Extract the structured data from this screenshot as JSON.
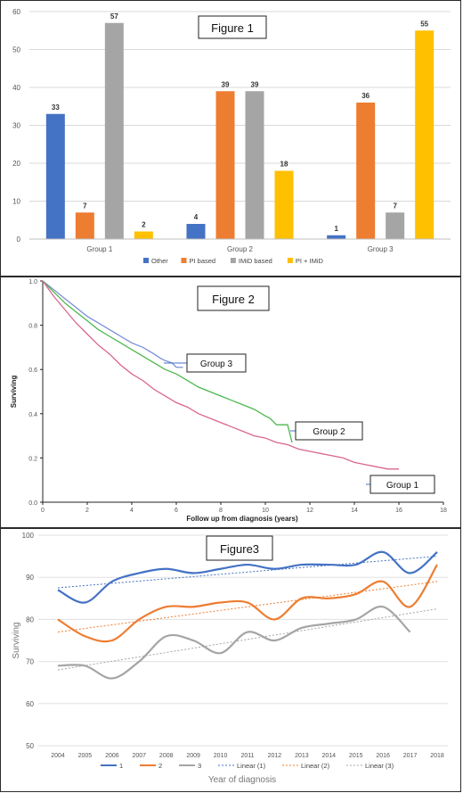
{
  "chart_data": [
    {
      "type": "bar",
      "title": "Figure 1",
      "categories": [
        "Group 1",
        "Group 2",
        "Group 3"
      ],
      "series": [
        {
          "name": "Other",
          "color": "#4472c4",
          "values": [
            33,
            4,
            1
          ]
        },
        {
          "name": "PI based",
          "color": "#ed7d31",
          "values": [
            7,
            39,
            36
          ]
        },
        {
          "name": "IMiD based",
          "color": "#a5a5a5",
          "values": [
            57,
            39,
            7
          ]
        },
        {
          "name": "PI + IMiD",
          "color": "#ffc000",
          "values": [
            2,
            18,
            55
          ]
        }
      ],
      "ylim": [
        0,
        60
      ],
      "yticks": [
        0,
        10,
        20,
        30,
        40,
        50,
        60
      ],
      "grid": true,
      "legend_position": "bottom"
    },
    {
      "type": "line",
      "title": "Figure 2",
      "xlabel": "Follow up from diagnosis (years)",
      "ylabel": "Surviving",
      "xlim": [
        0,
        18
      ],
      "ylim": [
        0,
        1.0
      ],
      "xticks": [
        0,
        2,
        4,
        6,
        8,
        10,
        12,
        14,
        16,
        18
      ],
      "yticks": [
        "0.0",
        "0.2",
        "0.4",
        "0.6",
        "0.8",
        "1.0"
      ],
      "series": [
        {
          "name": "Group 3",
          "color": "#7b8fd6",
          "x": [
            0,
            0.5,
            1,
            1.5,
            2,
            2.5,
            3,
            3.5,
            4,
            4.5,
            5,
            5.3,
            5.5,
            5.8,
            6.0,
            6.3
          ],
          "y": [
            1.0,
            0.96,
            0.92,
            0.88,
            0.84,
            0.81,
            0.78,
            0.75,
            0.72,
            0.7,
            0.67,
            0.65,
            0.64,
            0.63,
            0.61,
            0.61
          ]
        },
        {
          "name": "Group 2",
          "color": "#4db84d",
          "x": [
            0,
            0.5,
            1,
            1.5,
            2,
            2.5,
            3,
            3.5,
            4,
            4.5,
            5,
            5.5,
            6,
            6.5,
            7,
            7.5,
            8,
            8.5,
            9,
            9.5,
            10,
            10.2,
            10.5,
            11.0,
            11.2
          ],
          "y": [
            1.0,
            0.95,
            0.9,
            0.86,
            0.82,
            0.78,
            0.75,
            0.72,
            0.69,
            0.66,
            0.63,
            0.6,
            0.58,
            0.55,
            0.52,
            0.5,
            0.48,
            0.46,
            0.44,
            0.42,
            0.39,
            0.38,
            0.35,
            0.35,
            0.27
          ]
        },
        {
          "name": "Group 1",
          "color": "#d9668f",
          "x": [
            0,
            0.5,
            1,
            1.5,
            2,
            2.5,
            3,
            3.5,
            4,
            4.5,
            5,
            5.5,
            6,
            6.5,
            7,
            7.5,
            8,
            8.5,
            9,
            9.5,
            10,
            10.5,
            11,
            11.5,
            12,
            12.5,
            13,
            13.5,
            14,
            14.5,
            15,
            15.5,
            16
          ],
          "y": [
            1.0,
            0.93,
            0.87,
            0.81,
            0.76,
            0.71,
            0.67,
            0.62,
            0.58,
            0.55,
            0.51,
            0.48,
            0.45,
            0.43,
            0.4,
            0.38,
            0.36,
            0.34,
            0.32,
            0.3,
            0.29,
            0.27,
            0.26,
            0.24,
            0.23,
            0.22,
            0.21,
            0.2,
            0.18,
            0.17,
            0.16,
            0.15,
            0.15
          ]
        }
      ]
    },
    {
      "type": "line",
      "title": "Figure3",
      "xlabel": "Year of diagnosis",
      "ylabel": "Surviving",
      "ylim": [
        50,
        100
      ],
      "yticks": [
        50,
        60,
        70,
        80,
        90,
        100
      ],
      "x": [
        2004,
        2005,
        2006,
        2007,
        2008,
        2009,
        2010,
        2011,
        2012,
        2013,
        2014,
        2015,
        2016,
        2017,
        2018
      ],
      "series": [
        {
          "name": "1",
          "color": "#4472c4",
          "values": [
            87,
            84,
            89,
            91,
            92,
            91,
            92,
            93,
            92,
            93,
            93,
            93,
            96,
            91,
            96
          ]
        },
        {
          "name": "2",
          "color": "#ed7d31",
          "values": [
            80,
            76,
            75,
            80,
            83,
            83,
            84,
            84,
            80,
            85,
            85,
            86,
            89,
            83,
            93
          ]
        },
        {
          "name": "3",
          "color": "#a5a5a5",
          "values": [
            69,
            69,
            66,
            70,
            76,
            75,
            72,
            77,
            75,
            78,
            79,
            80,
            83,
            77,
            null
          ]
        }
      ],
      "trendlines": [
        {
          "name": "Linear (1)",
          "color": "#4472c4",
          "start": 87.5,
          "end": 95
        },
        {
          "name": "Linear (2)",
          "color": "#ed7d31",
          "start": 77,
          "end": 89
        },
        {
          "name": "Linear (3)",
          "color": "#a5a5a5",
          "start": 68,
          "end": 82.5
        }
      ],
      "grid": true,
      "legend_position": "bottom"
    }
  ],
  "figure2_labels": {
    "group3": "Group 3",
    "group2": "Group 2",
    "group1": "Group 1"
  }
}
